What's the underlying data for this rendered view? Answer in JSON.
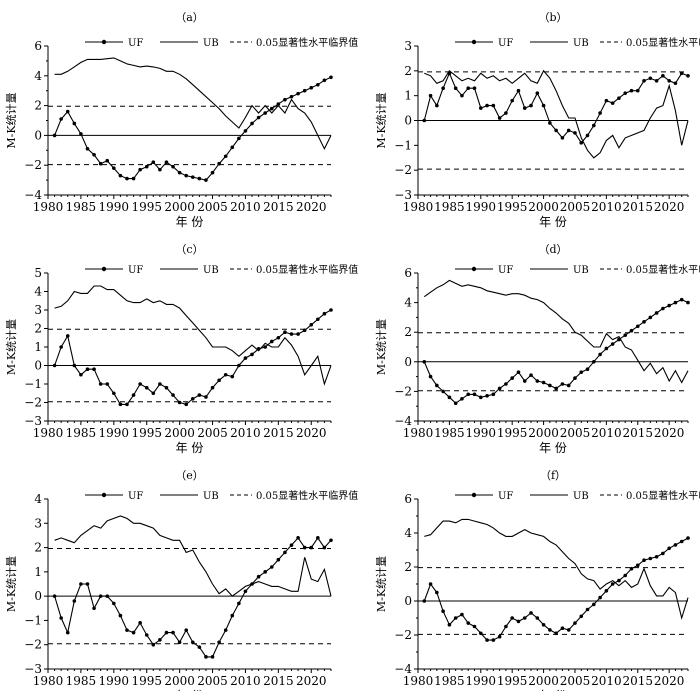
{
  "legend": {
    "uf": "UF",
    "ub": "UB",
    "crit": "0.05显著性水平临界值"
  },
  "xlabel": "年 份",
  "ylabel": "M-K统计量",
  "chart_data": [
    {
      "type": "line",
      "panel": "（a）",
      "ylim": [
        -4,
        6
      ],
      "yticks": [
        -4,
        -2,
        0,
        2,
        4,
        6
      ],
      "xlim": [
        1980,
        2023
      ],
      "xticks": [
        1980,
        1985,
        1990,
        1995,
        2000,
        2005,
        2010,
        2015,
        2020
      ],
      "critical": [
        1.96,
        -1.96
      ],
      "x": [
        1981,
        1982,
        1983,
        1984,
        1985,
        1986,
        1987,
        1988,
        1989,
        1990,
        1991,
        1992,
        1993,
        1994,
        1995,
        1996,
        1997,
        1998,
        1999,
        2000,
        2001,
        2002,
        2003,
        2004,
        2005,
        2006,
        2007,
        2008,
        2009,
        2010,
        2011,
        2012,
        2013,
        2014,
        2015,
        2016,
        2017,
        2018,
        2019,
        2020,
        2021,
        2022,
        2023
      ],
      "series": [
        {
          "name": "UF",
          "values": [
            0,
            1.1,
            1.6,
            0.8,
            0.1,
            -0.9,
            -1.3,
            -1.9,
            -1.7,
            -2.2,
            -2.7,
            -2.9,
            -2.9,
            -2.3,
            -2.1,
            -1.8,
            -2.3,
            -1.8,
            -2.1,
            -2.5,
            -2.7,
            -2.8,
            -2.9,
            -3.0,
            -2.5,
            -1.9,
            -1.4,
            -0.8,
            -0.2,
            0.3,
            0.8,
            1.2,
            1.5,
            1.8,
            2.1,
            2.4,
            2.6,
            2.8,
            3.0,
            3.2,
            3.4,
            3.7,
            3.9
          ]
        },
        {
          "name": "UB",
          "values": [
            4.1,
            4.1,
            4.3,
            4.6,
            4.9,
            5.1,
            5.1,
            5.1,
            5.15,
            5.2,
            5.0,
            4.8,
            4.7,
            4.6,
            4.65,
            4.6,
            4.5,
            4.3,
            4.3,
            4.1,
            3.8,
            3.4,
            3.0,
            2.6,
            2.2,
            1.8,
            1.3,
            0.9,
            0.5,
            1.2,
            2.0,
            1.5,
            2.0,
            1.5,
            2.0,
            1.5,
            2.4,
            1.8,
            1.5,
            0.9,
            0,
            -0.9,
            0
          ]
        }
      ]
    },
    {
      "type": "line",
      "panel": "（b）",
      "ylim": [
        -3,
        3
      ],
      "yticks": [
        -3,
        -2,
        -1,
        0,
        1,
        2,
        3
      ],
      "xlim": [
        1980,
        2023
      ],
      "xticks": [
        1980,
        1985,
        1990,
        1995,
        2000,
        2005,
        2010,
        2015,
        2020
      ],
      "critical": [
        1.96,
        -1.96
      ],
      "x": [
        1981,
        1982,
        1983,
        1984,
        1985,
        1986,
        1987,
        1988,
        1989,
        1990,
        1991,
        1992,
        1993,
        1994,
        1995,
        1996,
        1997,
        1998,
        1999,
        2000,
        2001,
        2002,
        2003,
        2004,
        2005,
        2006,
        2007,
        2008,
        2009,
        2010,
        2011,
        2012,
        2013,
        2014,
        2015,
        2016,
        2017,
        2018,
        2019,
        2020,
        2021,
        2022,
        2023
      ],
      "series": [
        {
          "name": "UF",
          "values": [
            0,
            1.0,
            0.6,
            1.3,
            1.9,
            1.3,
            1.0,
            1.3,
            1.3,
            0.5,
            0.6,
            0.6,
            0.1,
            0.3,
            0.8,
            1.2,
            0.5,
            0.6,
            1.1,
            0.6,
            -0.1,
            -0.4,
            -0.7,
            -0.4,
            -0.5,
            -0.9,
            -0.6,
            -0.2,
            0.3,
            0.8,
            0.7,
            0.9,
            1.1,
            1.2,
            1.2,
            1.6,
            1.7,
            1.6,
            1.8,
            1.6,
            1.5,
            1.9,
            1.8
          ]
        },
        {
          "name": "UB",
          "values": [
            1.9,
            1.8,
            1.5,
            1.6,
            2.0,
            1.8,
            1.6,
            1.7,
            1.6,
            1.9,
            1.7,
            1.8,
            1.6,
            1.7,
            1.5,
            1.7,
            1.9,
            1.6,
            1.5,
            2.0,
            1.7,
            1.2,
            0.6,
            0.1,
            0.1,
            -0.7,
            -1.2,
            -1.5,
            -1.3,
            -0.8,
            -0.6,
            -1.1,
            -0.7,
            -0.6,
            -0.5,
            -0.4,
            0.1,
            0.5,
            0.6,
            1.4,
            0.4,
            -1.0,
            0
          ]
        }
      ]
    },
    {
      "type": "line",
      "panel": "（c）",
      "ylim": [
        -3,
        5
      ],
      "yticks": [
        -3,
        -2,
        -1,
        0,
        1,
        2,
        3,
        4,
        5
      ],
      "xlim": [
        1980,
        2023
      ],
      "xticks": [
        1980,
        1985,
        1990,
        1995,
        2000,
        2005,
        2010,
        2015,
        2020
      ],
      "critical": [
        1.96,
        -1.96
      ],
      "x": [
        1981,
        1982,
        1983,
        1984,
        1985,
        1986,
        1987,
        1988,
        1989,
        1990,
        1991,
        1992,
        1993,
        1994,
        1995,
        1996,
        1997,
        1998,
        1999,
        2000,
        2001,
        2002,
        2003,
        2004,
        2005,
        2006,
        2007,
        2008,
        2009,
        2010,
        2011,
        2012,
        2013,
        2014,
        2015,
        2016,
        2017,
        2018,
        2019,
        2020,
        2021,
        2022,
        2023
      ],
      "series": [
        {
          "name": "UF",
          "values": [
            0,
            1.0,
            1.6,
            0,
            -0.5,
            -0.2,
            -0.2,
            -1.0,
            -1.0,
            -1.5,
            -2.1,
            -2.1,
            -1.6,
            -1.0,
            -1.2,
            -1.5,
            -1.0,
            -1.2,
            -1.6,
            -2.0,
            -2.1,
            -1.8,
            -1.6,
            -1.7,
            -1.2,
            -0.8,
            -0.5,
            -0.6,
            0,
            0.4,
            0.6,
            0.9,
            1.0,
            1.3,
            1.5,
            1.8,
            1.7,
            1.7,
            1.9,
            2.2,
            2.5,
            2.8,
            3.0
          ]
        },
        {
          "name": "UB",
          "values": [
            3.1,
            3.2,
            3.5,
            4.0,
            3.9,
            3.9,
            4.3,
            4.3,
            4.1,
            4.1,
            3.8,
            3.5,
            3.4,
            3.4,
            3.6,
            3.4,
            3.5,
            3.3,
            3.3,
            3.1,
            2.7,
            2.3,
            1.9,
            1.5,
            1.0,
            1.0,
            1.0,
            0.8,
            0.5,
            0.8,
            1.1,
            0.8,
            1.2,
            1.0,
            1.0,
            1.5,
            1.1,
            0.5,
            -0.5,
            0,
            0.5,
            -1.0,
            0
          ]
        }
      ]
    },
    {
      "type": "line",
      "panel": "（d）",
      "ylim": [
        -4,
        6
      ],
      "yticks": [
        -4,
        -2,
        0,
        2,
        4,
        6
      ],
      "xlim": [
        1980,
        2023
      ],
      "xticks": [
        1980,
        1985,
        1990,
        1995,
        2000,
        2005,
        2010,
        2015,
        2020
      ],
      "critical": [
        1.96,
        -1.96
      ],
      "x": [
        1981,
        1982,
        1983,
        1984,
        1985,
        1986,
        1987,
        1988,
        1989,
        1990,
        1991,
        1992,
        1993,
        1994,
        1995,
        1996,
        1997,
        1998,
        1999,
        2000,
        2001,
        2002,
        2003,
        2004,
        2005,
        2006,
        2007,
        2008,
        2009,
        2010,
        2011,
        2012,
        2013,
        2014,
        2015,
        2016,
        2017,
        2018,
        2019,
        2020,
        2021,
        2022,
        2023
      ],
      "series": [
        {
          "name": "UF",
          "values": [
            0,
            -1.0,
            -1.6,
            -2.0,
            -2.4,
            -2.8,
            -2.5,
            -2.2,
            -2.2,
            -2.4,
            -2.3,
            -2.2,
            -1.8,
            -1.5,
            -1.1,
            -0.7,
            -1.3,
            -0.9,
            -1.3,
            -1.4,
            -1.6,
            -1.8,
            -1.5,
            -1.6,
            -1.1,
            -0.7,
            -0.5,
            0,
            0.5,
            0.9,
            1.2,
            1.5,
            1.8,
            2.1,
            2.4,
            2.7,
            3.0,
            3.3,
            3.6,
            3.8,
            4.0,
            4.2,
            4.0
          ]
        },
        {
          "name": "UB",
          "values": [
            4.4,
            4.7,
            5.0,
            5.2,
            5.5,
            5.3,
            5.1,
            5.2,
            5.1,
            5.0,
            4.8,
            4.7,
            4.6,
            4.5,
            4.6,
            4.6,
            4.5,
            4.3,
            4.2,
            4.0,
            3.6,
            3.3,
            2.9,
            2.6,
            2.0,
            1.8,
            1.4,
            1.0,
            1.0,
            1.9,
            1.5,
            1.7,
            1.0,
            0.8,
            0.1,
            -0.6,
            -0.1,
            -0.8,
            -0.4,
            -1.3,
            -0.6,
            -1.4,
            -0.6
          ]
        }
      ]
    },
    {
      "type": "line",
      "panel": "（e）",
      "ylim": [
        -3,
        4
      ],
      "yticks": [
        -3,
        -2,
        -1,
        0,
        1,
        2,
        3,
        4
      ],
      "xlim": [
        1980,
        2023
      ],
      "xticks": [
        1980,
        1985,
        1990,
        1995,
        2000,
        2005,
        2010,
        2015,
        2020
      ],
      "critical": [
        1.96,
        -1.96
      ],
      "x": [
        1981,
        1982,
        1983,
        1984,
        1985,
        1986,
        1987,
        1988,
        1989,
        1990,
        1991,
        1992,
        1993,
        1994,
        1995,
        1996,
        1997,
        1998,
        1999,
        2000,
        2001,
        2002,
        2003,
        2004,
        2005,
        2006,
        2007,
        2008,
        2009,
        2010,
        2011,
        2012,
        2013,
        2014,
        2015,
        2016,
        2017,
        2018,
        2019,
        2020,
        2021,
        2022,
        2023
      ],
      "series": [
        {
          "name": "UF",
          "values": [
            0,
            -0.9,
            -1.5,
            -0.2,
            0.5,
            0.5,
            -0.5,
            0,
            0,
            -0.3,
            -0.8,
            -1.4,
            -1.5,
            -1.1,
            -1.6,
            -2.0,
            -1.8,
            -1.5,
            -1.5,
            -1.9,
            -1.4,
            -1.9,
            -2.1,
            -2.5,
            -2.5,
            -1.9,
            -1.4,
            -0.8,
            -0.3,
            0.2,
            0.5,
            0.8,
            1.0,
            1.2,
            1.5,
            1.8,
            2.1,
            2.4,
            2.0,
            2.0,
            2.4,
            2.0,
            2.3
          ]
        },
        {
          "name": "UB",
          "values": [
            2.3,
            2.4,
            2.3,
            2.2,
            2.5,
            2.7,
            2.9,
            2.8,
            3.1,
            3.2,
            3.3,
            3.2,
            3.0,
            3.0,
            2.9,
            2.8,
            2.5,
            2.4,
            2.3,
            2.3,
            1.8,
            1.9,
            1.4,
            1.0,
            0.5,
            0.1,
            0.3,
            0,
            0.2,
            0.4,
            0.5,
            0.6,
            0.5,
            0.4,
            0.4,
            0.3,
            0.2,
            0.2,
            1.6,
            0.7,
            0.6,
            1.1,
            0
          ]
        }
      ]
    },
    {
      "type": "line",
      "panel": "（f）",
      "ylim": [
        -4,
        6
      ],
      "yticks": [
        -4,
        -2,
        0,
        2,
        4,
        6
      ],
      "xlim": [
        1980,
        2023
      ],
      "xticks": [
        1980,
        1985,
        1990,
        1995,
        2000,
        2005,
        2010,
        2015,
        2020
      ],
      "critical": [
        1.96,
        -1.96
      ],
      "x": [
        1981,
        1982,
        1983,
        1984,
        1985,
        1986,
        1987,
        1988,
        1989,
        1990,
        1991,
        1992,
        1993,
        1994,
        1995,
        1996,
        1997,
        1998,
        1999,
        2000,
        2001,
        2002,
        2003,
        2004,
        2005,
        2006,
        2007,
        2008,
        2009,
        2010,
        2011,
        2012,
        2013,
        2014,
        2015,
        2016,
        2017,
        2018,
        2019,
        2020,
        2021,
        2022,
        2023
      ],
      "series": [
        {
          "name": "UF",
          "values": [
            0,
            1.0,
            0.5,
            -0.6,
            -1.4,
            -1.0,
            -0.8,
            -1.3,
            -1.5,
            -1.9,
            -2.3,
            -2.3,
            -2.1,
            -1.5,
            -1.0,
            -1.2,
            -1.0,
            -0.7,
            -1.0,
            -1.4,
            -1.7,
            -1.9,
            -1.6,
            -1.7,
            -1.3,
            -0.9,
            -0.5,
            -0.2,
            0.2,
            0.6,
            1.0,
            1.2,
            1.5,
            1.9,
            2.1,
            2.4,
            2.5,
            2.6,
            2.8,
            3.1,
            3.3,
            3.5,
            3.7
          ]
        },
        {
          "name": "UB",
          "values": [
            3.8,
            3.9,
            4.3,
            4.7,
            4.7,
            4.6,
            4.8,
            4.8,
            4.7,
            4.6,
            4.5,
            4.3,
            4.0,
            3.8,
            3.8,
            4.0,
            4.2,
            4.0,
            3.9,
            3.8,
            3.5,
            3.3,
            2.9,
            2.5,
            2.2,
            1.6,
            1.3,
            1.2,
            0.7,
            1.0,
            1.2,
            0.9,
            1.2,
            0.8,
            1.0,
            1.9,
            0.9,
            0.3,
            0.3,
            0.8,
            0.5,
            -1.0,
            0.2
          ]
        }
      ]
    }
  ]
}
